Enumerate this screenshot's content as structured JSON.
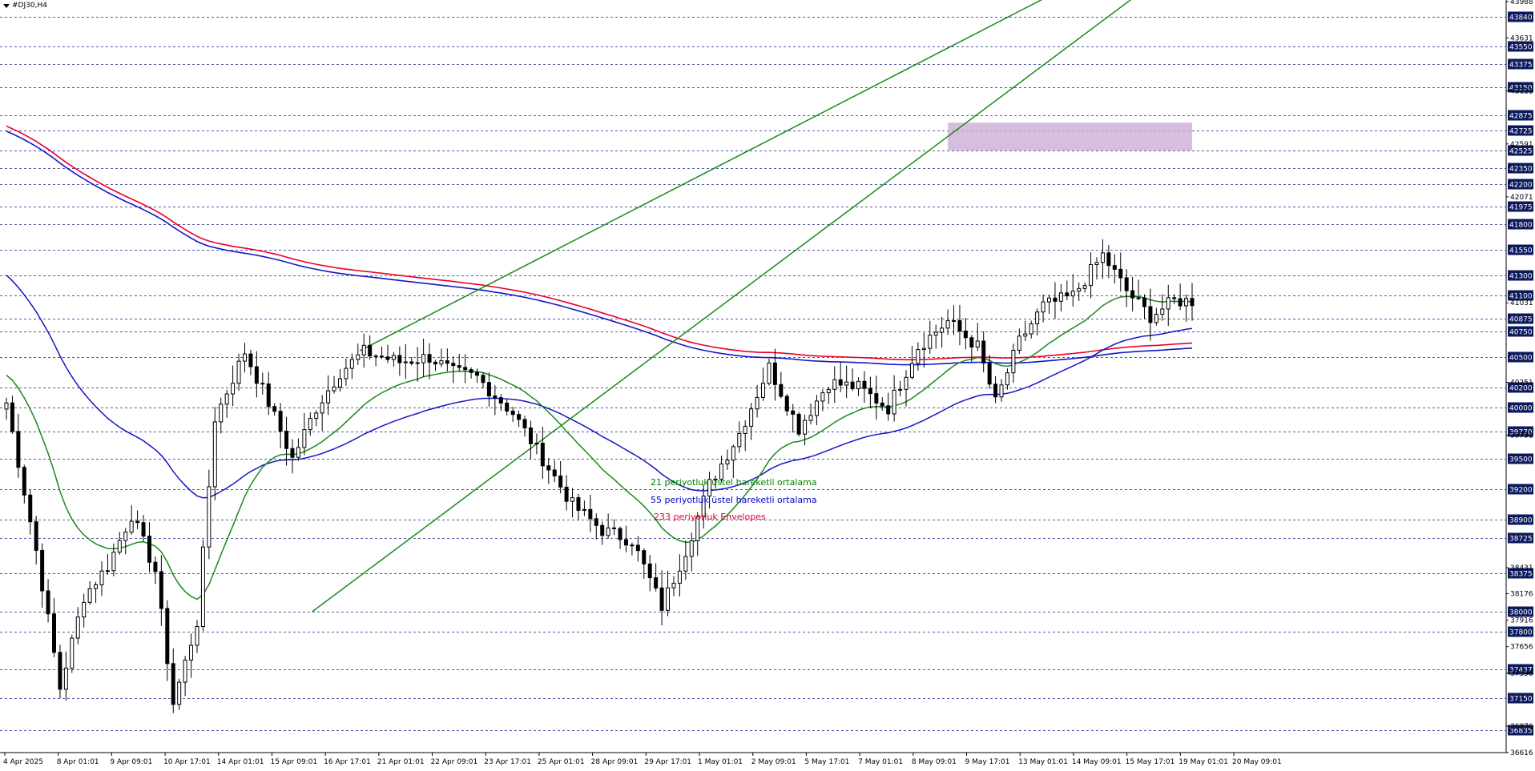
{
  "window": {
    "symbol_label": "#DJ30,H4"
  },
  "legend": [
    {
      "text": "21 periyotluk üstel hareketli ortalama",
      "color": "#008000"
    },
    {
      "text": "55 periyotluk üstel hareketli ortalama",
      "color": "#0000cc"
    },
    {
      "text": "233 periyotluk Envelopes",
      "color": "#e8002a"
    }
  ],
  "colors": {
    "background": "#ffffff",
    "grid": "#1a1f8a",
    "candle": "#000000",
    "ema21": "#1a8a1a",
    "ema55": "#1515c8",
    "env_upper": "#e8002a",
    "env_lower": "#1515c8",
    "channel": "#1a8a1a",
    "zone": "#c9a8d4",
    "axis_label_bg": "#0a1a5c",
    "axis_label_text": "#ffffff"
  },
  "chart_data": {
    "type": "candlestick",
    "symbol": "#DJ30",
    "timeframe": "H4",
    "ylim": [
      36616,
      43988
    ],
    "grid_levels": [
      43840,
      43550,
      43375,
      43150,
      42875,
      42725,
      42525,
      42350,
      42200,
      41975,
      41800,
      41550,
      41300,
      41100,
      40875,
      40750,
      40500,
      40200,
      40000,
      39770,
      39500,
      39200,
      38900,
      38725,
      38375,
      38000,
      37800,
      37437,
      37150,
      36835
    ],
    "minor_price_labels": [
      43988,
      43631,
      43111,
      42591,
      42071,
      41031,
      40251,
      39731,
      38431,
      38176,
      37916,
      37656,
      37396,
      36876,
      36616
    ],
    "time_labels": [
      "4 Apr 2025",
      "8 Apr 01:01",
      "9 Apr 09:01",
      "10 Apr 17:01",
      "14 Apr 01:01",
      "15 Apr 09:01",
      "16 Apr 17:01",
      "21 Apr 01:01",
      "22 Apr 09:01",
      "23 Apr 17:01",
      "25 Apr 01:01",
      "28 Apr 09:01",
      "29 Apr 17:01",
      "1 May 01:01",
      "2 May 09:01",
      "5 May 17:01",
      "7 May 01:01",
      "8 May 09:01",
      "9 May 17:01",
      "13 May 01:01",
      "14 May 09:01",
      "15 May 17:01",
      "19 May 01:01",
      "20 May 09:01"
    ],
    "bar_count": 200,
    "anchors": [
      [
        0,
        40050
      ],
      [
        5,
        38600
      ],
      [
        9,
        37250
      ],
      [
        13,
        38150
      ],
      [
        17,
        38450
      ],
      [
        21,
        38950
      ],
      [
        25,
        38400
      ],
      [
        28,
        37100
      ],
      [
        32,
        37900
      ],
      [
        35,
        39900
      ],
      [
        40,
        40550
      ],
      [
        44,
        40050
      ],
      [
        48,
        39500
      ],
      [
        52,
        40000
      ],
      [
        56,
        40350
      ],
      [
        60,
        40550
      ],
      [
        66,
        40450
      ],
      [
        71,
        40500
      ],
      [
        75,
        40350
      ],
      [
        79,
        40300
      ],
      [
        85,
        39950
      ],
      [
        90,
        39500
      ],
      [
        95,
        39050
      ],
      [
        100,
        38800
      ],
      [
        105,
        38700
      ],
      [
        110,
        38050
      ],
      [
        114,
        38600
      ],
      [
        118,
        39250
      ],
      [
        123,
        39750
      ],
      [
        128,
        40400
      ],
      [
        133,
        39800
      ],
      [
        138,
        40250
      ],
      [
        143,
        40200
      ],
      [
        148,
        40000
      ],
      [
        153,
        40600
      ],
      [
        158,
        40850
      ],
      [
        163,
        40600
      ],
      [
        166,
        40050
      ],
      [
        170,
        40650
      ],
      [
        174,
        41000
      ],
      [
        179,
        41100
      ],
      [
        184,
        41500
      ],
      [
        188,
        41150
      ],
      [
        192,
        40900
      ],
      [
        196,
        41050
      ],
      [
        199,
        41050
      ]
    ],
    "series": [
      {
        "name": "21 periyotluk üstel hareketli ortalama",
        "period": 21,
        "type": "ema"
      },
      {
        "name": "55 periyotluk üstel hareketli ortalama",
        "period": 55,
        "type": "ema"
      },
      {
        "name": "233 periyotluk Envelopes",
        "period": 233,
        "type": "envelopes"
      }
    ],
    "channel": {
      "lower": [
        [
          38000,
          0.258
        ],
        [
          42525,
          0.778
        ]
      ],
      "upper": [
        [
          40560,
          0.298
        ],
        [
          43988,
          0.87
        ]
      ]
    },
    "zone": {
      "from": 42525,
      "to": 42800
    }
  }
}
